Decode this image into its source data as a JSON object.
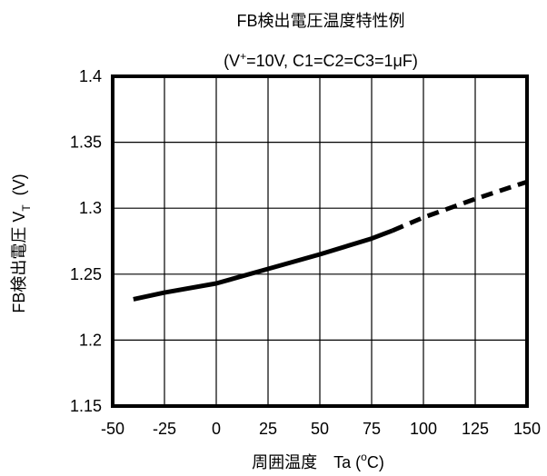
{
  "chart_data": {
    "type": "line",
    "title": "FB検出電圧温度特性例",
    "subtitle": {
      "prefix": "(V",
      "sup": "+",
      "suffix": "=10V, C1=C2=C3=1",
      "mu": "μ",
      "end": "F)"
    },
    "xlabel": {
      "main": "周囲温度　Ta (",
      "sup": "o",
      "end": "C)"
    },
    "ylabel": {
      "main": "FB検出電圧 V",
      "sub": "T",
      "unit": "(V)"
    },
    "xlim": [
      -50,
      150
    ],
    "ylim": [
      1.15,
      1.4
    ],
    "x_ticks": [
      -50,
      -25,
      0,
      25,
      50,
      75,
      100,
      125,
      150
    ],
    "y_ticks": [
      1.15,
      1.2,
      1.25,
      1.3,
      1.35,
      1.4
    ],
    "y_tick_labels": [
      "1.15",
      "1.2",
      "1.25",
      "1.3",
      "1.35",
      "1.4"
    ],
    "grid": true,
    "series": [
      {
        "style": "solid",
        "color": "#000000",
        "x": [
          -40,
          -25,
          0,
          25,
          50,
          75,
          85
        ],
        "y": [
          1.231,
          1.236,
          1.243,
          1.254,
          1.265,
          1.277,
          1.283
        ]
      },
      {
        "style": "dashed",
        "color": "#000000",
        "x": [
          85,
          100,
          125,
          150
        ],
        "y": [
          1.283,
          1.293,
          1.307,
          1.32
        ]
      }
    ]
  }
}
